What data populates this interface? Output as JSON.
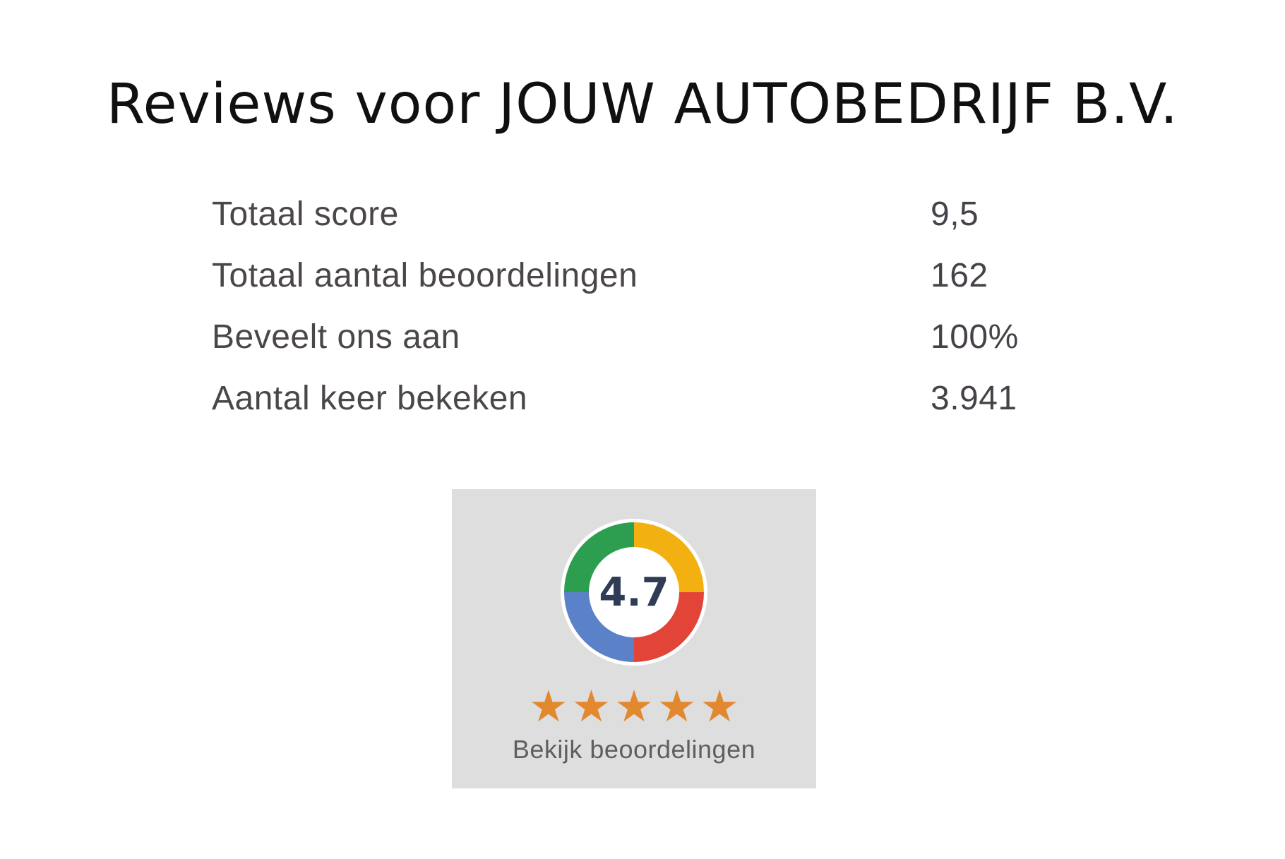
{
  "page": {
    "title": "Reviews voor JOUW AUTOBEDRIJF B.V."
  },
  "stats": {
    "rows": [
      {
        "label": "Totaal score",
        "value": "9,5"
      },
      {
        "label": "Totaal aantal beoordelingen",
        "value": "162"
      },
      {
        "label": "Beveelt ons aan",
        "value": "100%"
      },
      {
        "label": "Aantal keer bekeken",
        "value": "3.941"
      }
    ]
  },
  "review_badge": {
    "rating": "4.7",
    "stars": "★★★★★",
    "stars_count": 5,
    "link_label": "Bekijk beoordelingen",
    "colors": {
      "card_background": "#dedede",
      "ring_green": "#2d9e4f",
      "ring_yellow": "#f2b111",
      "ring_red": "#e24538",
      "ring_blue": "#5b81c8",
      "rating_text": "#2e3c55",
      "star_orange": "#e2882f",
      "link_text": "#5f5f5f"
    }
  }
}
